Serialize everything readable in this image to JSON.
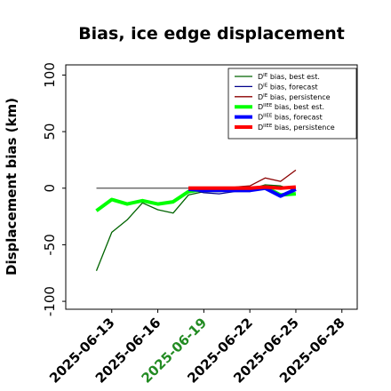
{
  "chart_data": {
    "type": "line",
    "title": "Bias, ice edge displacement",
    "xlabel": "",
    "ylabel": "Displacement bias (km)",
    "ylim": [
      -107,
      109
    ],
    "xlim": [
      "2025-06-10",
      "2025-06-29"
    ],
    "x_ticks": [
      "2025-06-13",
      "2025-06-16",
      "2025-06-19",
      "2025-06-22",
      "2025-06-25",
      "2025-06-28"
    ],
    "highlighted_x_tick": "2025-06-19",
    "highlight_color": "#228b22",
    "y_ticks": [
      -100,
      -50,
      0,
      50,
      100
    ],
    "zero_line": true,
    "grid": false,
    "legend_position": "top-right",
    "series": [
      {
        "name_base": "D",
        "name_sup": "IE",
        "name_rest": " bias, best est.",
        "color": "#006400",
        "linewidth": 1.3,
        "x": [
          "2025-06-12",
          "2025-06-13",
          "2025-06-14",
          "2025-06-15",
          "2025-06-16",
          "2025-06-17",
          "2025-06-18",
          "2025-06-19",
          "2025-06-20",
          "2025-06-21",
          "2025-06-22",
          "2025-06-23",
          "2025-06-24",
          "2025-06-25"
        ],
        "y": [
          -73,
          -39,
          -28,
          -13,
          -19,
          -22,
          -6,
          -3,
          -3,
          -2,
          -1,
          3,
          2,
          -2
        ]
      },
      {
        "name_base": "D",
        "name_sup": "IE",
        "name_rest": " bias, forecast",
        "color": "#00008b",
        "linewidth": 1.3,
        "x": [
          "2025-06-18",
          "2025-06-19",
          "2025-06-20",
          "2025-06-21",
          "2025-06-22",
          "2025-06-23",
          "2025-06-24",
          "2025-06-25"
        ],
        "y": [
          -1,
          -4,
          -5,
          -3,
          -3,
          1,
          -7,
          0
        ]
      },
      {
        "name_base": "D",
        "name_sup": "IE",
        "name_rest": " bias, persistence",
        "color": "#8b0000",
        "linewidth": 1.3,
        "x": [
          "2025-06-18",
          "2025-06-19",
          "2025-06-20",
          "2025-06-21",
          "2025-06-22",
          "2025-06-23",
          "2025-06-24",
          "2025-06-25"
        ],
        "y": [
          1,
          1,
          1,
          1,
          2,
          9,
          6,
          16
        ]
      },
      {
        "name_base": "D",
        "name_sup": "IIEE",
        "name_rest": " bias, best est.",
        "color": "#00ff00",
        "linewidth": 4,
        "x": [
          "2025-06-12",
          "2025-06-13",
          "2025-06-14",
          "2025-06-15",
          "2025-06-16",
          "2025-06-17",
          "2025-06-18",
          "2025-06-19",
          "2025-06-20",
          "2025-06-21",
          "2025-06-22",
          "2025-06-23",
          "2025-06-24",
          "2025-06-25"
        ],
        "y": [
          -20,
          -10,
          -14,
          -11,
          -14,
          -12,
          -3,
          -1,
          -1,
          -1,
          -1,
          1,
          -6,
          -5
        ]
      },
      {
        "name_base": "D",
        "name_sup": "IIEE",
        "name_rest": " bias, forecast",
        "color": "#0000ff",
        "linewidth": 4,
        "x": [
          "2025-06-18",
          "2025-06-19",
          "2025-06-20",
          "2025-06-21",
          "2025-06-22",
          "2025-06-23",
          "2025-06-24",
          "2025-06-25"
        ],
        "y": [
          -1,
          -2,
          -2,
          -2,
          -2,
          0,
          -7,
          -1
        ]
      },
      {
        "name_base": "D",
        "name_sup": "IIEE",
        "name_rest": " bias, persistence",
        "color": "#ff0000",
        "linewidth": 4,
        "x": [
          "2025-06-18",
          "2025-06-19",
          "2025-06-20",
          "2025-06-21",
          "2025-06-22",
          "2025-06-23",
          "2025-06-24",
          "2025-06-25"
        ],
        "y": [
          0,
          0,
          0,
          0,
          0,
          1,
          0,
          1
        ]
      }
    ]
  }
}
